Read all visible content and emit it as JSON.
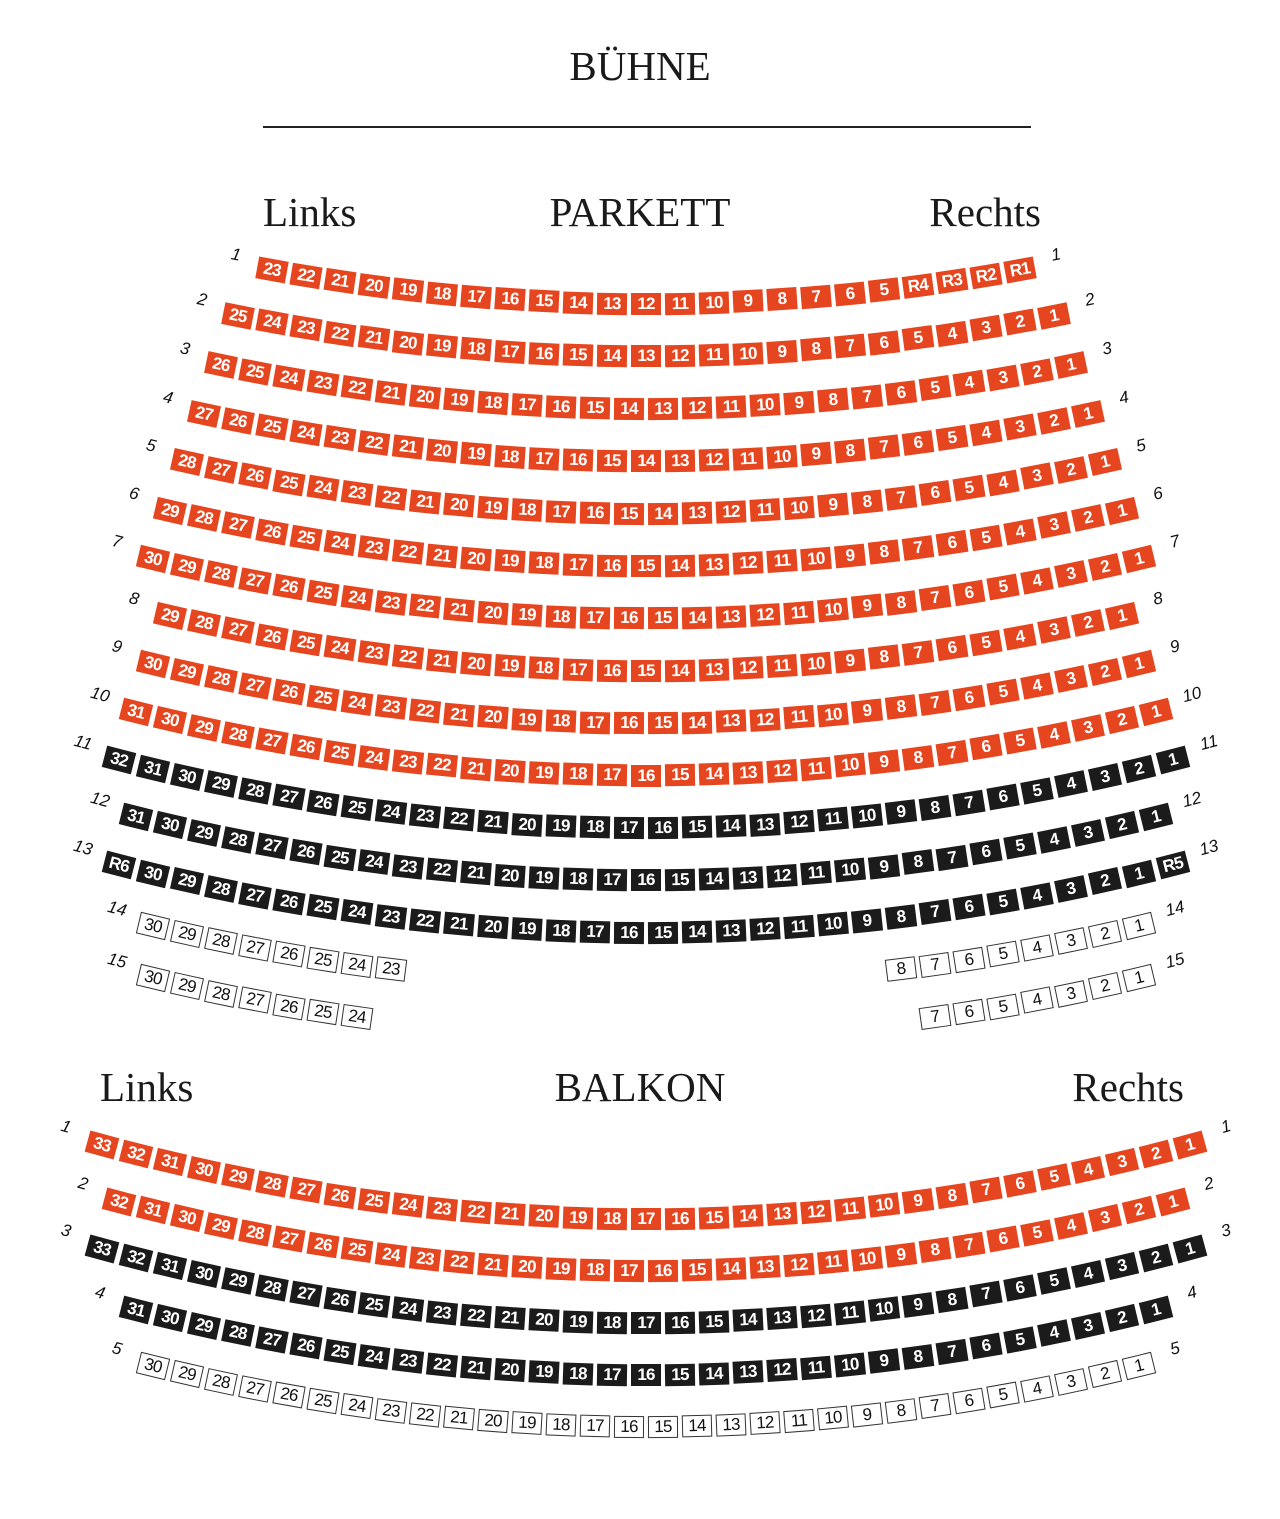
{
  "stage": {
    "title": "BÜHNE"
  },
  "colors": {
    "orange": "#e5461f",
    "black": "#1b1b1b",
    "white": "#ffffff"
  },
  "sections": [
    {
      "id": "parkett",
      "title": "PARKETT",
      "left_label": "Links",
      "right_label": "Rechts",
      "rows": [
        {
          "row": "1",
          "color": "orange",
          "seats": [
            "23",
            "22",
            "21",
            "20",
            "19",
            "18",
            "17",
            "16",
            "15",
            "14",
            "13",
            "12",
            "11",
            "10",
            "9",
            "8",
            "7",
            "6",
            "5",
            "R4",
            "R3",
            "R2",
            "R1"
          ]
        },
        {
          "row": "2",
          "color": "orange",
          "seats": [
            "25",
            "24",
            "23",
            "22",
            "21",
            "20",
            "19",
            "18",
            "17",
            "16",
            "15",
            "14",
            "13",
            "12",
            "11",
            "10",
            "9",
            "8",
            "7",
            "6",
            "5",
            "4",
            "3",
            "2",
            "1"
          ]
        },
        {
          "row": "3",
          "color": "orange",
          "seats": [
            "26",
            "25",
            "24",
            "23",
            "22",
            "21",
            "20",
            "19",
            "18",
            "17",
            "16",
            "15",
            "14",
            "13",
            "12",
            "11",
            "10",
            "9",
            "8",
            "7",
            "6",
            "5",
            "4",
            "3",
            "2",
            "1"
          ]
        },
        {
          "row": "4",
          "color": "orange",
          "seats": [
            "27",
            "26",
            "25",
            "24",
            "23",
            "22",
            "21",
            "20",
            "19",
            "18",
            "17",
            "16",
            "15",
            "14",
            "13",
            "12",
            "11",
            "10",
            "9",
            "8",
            "7",
            "6",
            "5",
            "4",
            "3",
            "2",
            "1"
          ]
        },
        {
          "row": "5",
          "color": "orange",
          "seats": [
            "28",
            "27",
            "26",
            "25",
            "24",
            "23",
            "22",
            "21",
            "20",
            "19",
            "18",
            "17",
            "16",
            "15",
            "14",
            "13",
            "12",
            "11",
            "10",
            "9",
            "8",
            "7",
            "6",
            "5",
            "4",
            "3",
            "2",
            "1"
          ]
        },
        {
          "row": "6",
          "color": "orange",
          "seats": [
            "29",
            "28",
            "27",
            "26",
            "25",
            "24",
            "23",
            "22",
            "21",
            "20",
            "19",
            "18",
            "17",
            "16",
            "15",
            "14",
            "13",
            "12",
            "11",
            "10",
            "9",
            "8",
            "7",
            "6",
            "5",
            "4",
            "3",
            "2",
            "1"
          ]
        },
        {
          "row": "7",
          "color": "orange",
          "seats": [
            "30",
            "29",
            "28",
            "27",
            "26",
            "25",
            "24",
            "23",
            "22",
            "21",
            "20",
            "19",
            "18",
            "17",
            "16",
            "15",
            "14",
            "13",
            "12",
            "11",
            "10",
            "9",
            "8",
            "7",
            "6",
            "5",
            "4",
            "3",
            "2",
            "1"
          ]
        },
        {
          "row": "8",
          "color": "orange",
          "seats": [
            "29",
            "28",
            "27",
            "26",
            "25",
            "24",
            "23",
            "22",
            "21",
            "20",
            "19",
            "18",
            "17",
            "16",
            "15",
            "14",
            "13",
            "12",
            "11",
            "10",
            "9",
            "8",
            "7",
            "6",
            "5",
            "4",
            "3",
            "2",
            "1"
          ]
        },
        {
          "row": "9",
          "color": "orange",
          "seats": [
            "30",
            "29",
            "28",
            "27",
            "26",
            "25",
            "24",
            "23",
            "22",
            "21",
            "20",
            "19",
            "18",
            "17",
            "16",
            "15",
            "14",
            "13",
            "12",
            "11",
            "10",
            "9",
            "8",
            "7",
            "6",
            "5",
            "4",
            "3",
            "2",
            "1"
          ]
        },
        {
          "row": "10",
          "color": "orange",
          "seats": [
            "31",
            "30",
            "29",
            "28",
            "27",
            "26",
            "25",
            "24",
            "23",
            "22",
            "21",
            "20",
            "19",
            "18",
            "17",
            "16",
            "15",
            "14",
            "13",
            "12",
            "11",
            "10",
            "9",
            "8",
            "7",
            "6",
            "5",
            "4",
            "3",
            "2",
            "1"
          ]
        },
        {
          "row": "11",
          "color": "black",
          "seats": [
            "32",
            "31",
            "30",
            "29",
            "28",
            "27",
            "26",
            "25",
            "24",
            "23",
            "22",
            "21",
            "20",
            "19",
            "18",
            "17",
            "16",
            "15",
            "14",
            "13",
            "12",
            "11",
            "10",
            "9",
            "8",
            "7",
            "6",
            "5",
            "4",
            "3",
            "2",
            "1"
          ]
        },
        {
          "row": "12",
          "color": "black",
          "seats": [
            "31",
            "30",
            "29",
            "28",
            "27",
            "26",
            "25",
            "24",
            "23",
            "22",
            "21",
            "20",
            "19",
            "18",
            "17",
            "16",
            "15",
            "14",
            "13",
            "12",
            "11",
            "10",
            "9",
            "8",
            "7",
            "6",
            "5",
            "4",
            "3",
            "2",
            "1"
          ]
        },
        {
          "row": "13",
          "color": "black",
          "seats": [
            "R6",
            "30",
            "29",
            "28",
            "27",
            "26",
            "25",
            "24",
            "23",
            "22",
            "21",
            "20",
            "19",
            "18",
            "17",
            "16",
            "15",
            "14",
            "13",
            "12",
            "11",
            "10",
            "9",
            "8",
            "7",
            "6",
            "5",
            "4",
            "3",
            "2",
            "1",
            "R5"
          ]
        },
        {
          "row": "14",
          "color": "white",
          "seats": [
            "30",
            "29",
            "28",
            "27",
            "26",
            "25",
            "24",
            "23",
            null,
            null,
            null,
            null,
            null,
            null,
            null,
            null,
            null,
            null,
            null,
            null,
            null,
            null,
            "8",
            "7",
            "6",
            "5",
            "4",
            "3",
            "2",
            "1"
          ]
        },
        {
          "row": "15",
          "color": "white",
          "seats": [
            "30",
            "29",
            "28",
            "27",
            "26",
            "25",
            "24",
            null,
            null,
            null,
            null,
            null,
            null,
            null,
            null,
            null,
            null,
            null,
            null,
            null,
            null,
            null,
            null,
            "7",
            "6",
            "5",
            "4",
            "3",
            "2",
            "1"
          ]
        }
      ]
    },
    {
      "id": "balkon",
      "title": "BALKON",
      "left_label": "Links",
      "right_label": "Rechts",
      "rows": [
        {
          "row": "1",
          "color": "orange",
          "seats": [
            "33",
            "32",
            "31",
            "30",
            "29",
            "28",
            "27",
            "26",
            "25",
            "24",
            "23",
            "22",
            "21",
            "20",
            "19",
            "18",
            "17",
            "16",
            "15",
            "14",
            "13",
            "12",
            "11",
            "10",
            "9",
            "8",
            "7",
            "6",
            "5",
            "4",
            "3",
            "2",
            "1"
          ]
        },
        {
          "row": "2",
          "color": "orange",
          "seats": [
            "32",
            "31",
            "30",
            "29",
            "28",
            "27",
            "26",
            "25",
            "24",
            "23",
            "22",
            "21",
            "20",
            "19",
            "18",
            "17",
            "16",
            "15",
            "14",
            "13",
            "12",
            "11",
            "10",
            "9",
            "8",
            "7",
            "6",
            "5",
            "4",
            "3",
            "2",
            "1"
          ]
        },
        {
          "row": "3",
          "color": "black",
          "seats": [
            "33",
            "32",
            "31",
            "30",
            "29",
            "28",
            "27",
            "26",
            "25",
            "24",
            "23",
            "22",
            "21",
            "20",
            "19",
            "18",
            "17",
            "16",
            "15",
            "14",
            "13",
            "12",
            "11",
            "10",
            "9",
            "8",
            "7",
            "6",
            "5",
            "4",
            "3",
            "2",
            "1"
          ]
        },
        {
          "row": "4",
          "color": "black",
          "seats": [
            "31",
            "30",
            "29",
            "28",
            "27",
            "26",
            "25",
            "24",
            "23",
            "22",
            "21",
            "20",
            "19",
            "18",
            "17",
            "16",
            "15",
            "14",
            "13",
            "12",
            "11",
            "10",
            "9",
            "8",
            "7",
            "6",
            "5",
            "4",
            "3",
            "2",
            "1"
          ]
        },
        {
          "row": "5",
          "color": "white",
          "seats": [
            "30",
            "29",
            "28",
            "27",
            "26",
            "25",
            "24",
            "23",
            "22",
            "21",
            "20",
            "19",
            "18",
            "17",
            "16",
            "15",
            "14",
            "13",
            "12",
            "11",
            "10",
            "9",
            "8",
            "7",
            "6",
            "5",
            "4",
            "3",
            "2",
            "1"
          ]
        }
      ]
    }
  ]
}
